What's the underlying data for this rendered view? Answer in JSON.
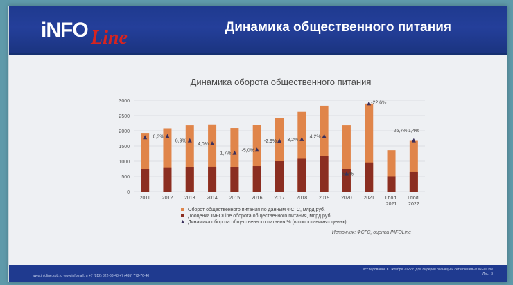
{
  "header": {
    "title": "Динамика общественного питания",
    "logo_info": "iNFO",
    "logo_line": "Line"
  },
  "colors": {
    "bar_total": "#e0854a",
    "bar_share": "#8b2e21",
    "marker": "#3a2f5c",
    "header_bg": "#1f3a8f"
  },
  "chart_data": {
    "type": "bar",
    "title": "Динамика оборота общественного питания",
    "categories": [
      "2011",
      "2012",
      "2013",
      "2014",
      "2015",
      "2016",
      "2017",
      "2018",
      "2019",
      "2020",
      "2021",
      "I пол. 2021",
      "I пол. 2022"
    ],
    "ylim": [
      0,
      3000
    ],
    "yticks": [
      0,
      500,
      1000,
      1500,
      2000,
      2500,
      3000
    ],
    "grid": true,
    "series": [
      {
        "name": "Оборот общественного питания по данным ФСГС, млрд руб.",
        "values": [
          1930,
          2080,
          2180,
          2210,
          2090,
          2200,
          2410,
          2620,
          2820,
          2180,
          2890,
          1360,
          1670
        ]
      },
      {
        "name": "Дооценка INFOLine оборота общественного питания, млрд руб.",
        "values": [
          730,
          780,
          810,
          820,
          800,
          840,
          1000,
          1080,
          1160,
          750,
          960,
          490,
          660
        ]
      },
      {
        "name": "Динамика оборота общественного питания,% (в сопоставимых ценах)",
        "values": [
          1790,
          1830,
          1690,
          1590,
          1280,
          1380,
          1680,
          1730,
          1830,
          600,
          2900,
          null,
          1690
        ],
        "labels": [
          "",
          "6,3%",
          "6,9%",
          "4,0%",
          "1,7%",
          "-5,0%",
          "-2,9%",
          "3,2%",
          "4,2%",
          "5,5%",
          "-22,6%",
          "26,7%",
          "1,4%"
        ]
      }
    ],
    "source": "Источник: ФСГС, оценка INFOLine"
  },
  "footer": {
    "left": "www.infoline.spb.ru   www.infomall.ru   +7 (812) 322-68-48   +7 (495) 772-76-40",
    "right_line1": "Исследование в Октябре 2022 г. для лидеров розницы и сети.пищевых INFOLine",
    "right_line2": "Лист 3"
  }
}
